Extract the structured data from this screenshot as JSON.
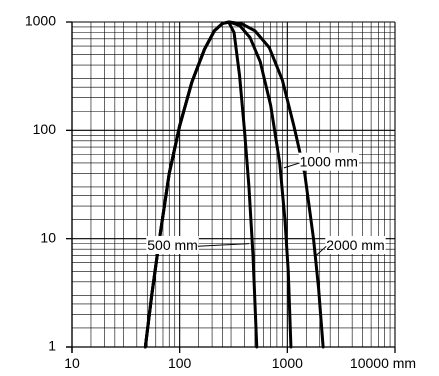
{
  "chart_data": {
    "type": "line",
    "title": "",
    "xlabel": "",
    "ylabel": "",
    "x_scale": "log",
    "y_scale": "log",
    "xlim": [
      10,
      10000
    ],
    "ylim": [
      1,
      1000
    ],
    "grid": true,
    "x_ticks": [
      {
        "value": 10,
        "label": "10"
      },
      {
        "value": 100,
        "label": "100"
      },
      {
        "value": 1000,
        "label": "1000"
      },
      {
        "value": 10000,
        "label": "10000 mm"
      }
    ],
    "y_ticks": [
      {
        "value": 1,
        "label": "1"
      },
      {
        "value": 10,
        "label": "10"
      },
      {
        "value": 100,
        "label": "100"
      },
      {
        "value": 1000,
        "label": "1000"
      }
    ],
    "series": [
      {
        "name": "500 mm",
        "label_anchor": {
          "x": 50,
          "y": 8.5
        },
        "label_target": {
          "x": 440,
          "y": 9
        },
        "points": [
          {
            "x": 48,
            "y": 1
          },
          {
            "x": 55,
            "y": 3
          },
          {
            "x": 65,
            "y": 10
          },
          {
            "x": 80,
            "y": 40
          },
          {
            "x": 100,
            "y": 110
          },
          {
            "x": 130,
            "y": 280
          },
          {
            "x": 170,
            "y": 560
          },
          {
            "x": 210,
            "y": 830
          },
          {
            "x": 250,
            "y": 970
          },
          {
            "x": 285,
            "y": 1000
          },
          {
            "x": 320,
            "y": 800
          },
          {
            "x": 360,
            "y": 320
          },
          {
            "x": 400,
            "y": 100
          },
          {
            "x": 440,
            "y": 30
          },
          {
            "x": 480,
            "y": 7
          },
          {
            "x": 520,
            "y": 1
          }
        ]
      },
      {
        "name": "1000 mm",
        "label_anchor": {
          "x": 1300,
          "y": 50
        },
        "label_target": {
          "x": 930,
          "y": 45
        },
        "points": [
          {
            "x": 48,
            "y": 1
          },
          {
            "x": 55,
            "y": 3
          },
          {
            "x": 65,
            "y": 10
          },
          {
            "x": 80,
            "y": 40
          },
          {
            "x": 100,
            "y": 110
          },
          {
            "x": 130,
            "y": 280
          },
          {
            "x": 170,
            "y": 560
          },
          {
            "x": 210,
            "y": 830
          },
          {
            "x": 250,
            "y": 970
          },
          {
            "x": 290,
            "y": 1000
          },
          {
            "x": 360,
            "y": 930
          },
          {
            "x": 450,
            "y": 720
          },
          {
            "x": 560,
            "y": 430
          },
          {
            "x": 700,
            "y": 170
          },
          {
            "x": 850,
            "y": 50
          },
          {
            "x": 950,
            "y": 15
          },
          {
            "x": 1020,
            "y": 5
          },
          {
            "x": 1080,
            "y": 1
          }
        ]
      },
      {
        "name": "2000 mm",
        "label_anchor": {
          "x": 2300,
          "y": 8.5
        },
        "label_target": {
          "x": 1850,
          "y": 7
        },
        "points": [
          {
            "x": 48,
            "y": 1
          },
          {
            "x": 55,
            "y": 3
          },
          {
            "x": 65,
            "y": 10
          },
          {
            "x": 80,
            "y": 40
          },
          {
            "x": 100,
            "y": 110
          },
          {
            "x": 130,
            "y": 280
          },
          {
            "x": 170,
            "y": 560
          },
          {
            "x": 210,
            "y": 830
          },
          {
            "x": 250,
            "y": 970
          },
          {
            "x": 290,
            "y": 1000
          },
          {
            "x": 380,
            "y": 960
          },
          {
            "x": 500,
            "y": 830
          },
          {
            "x": 680,
            "y": 580
          },
          {
            "x": 900,
            "y": 290
          },
          {
            "x": 1150,
            "y": 110
          },
          {
            "x": 1450,
            "y": 40
          },
          {
            "x": 1750,
            "y": 10
          },
          {
            "x": 1950,
            "y": 3.5
          },
          {
            "x": 2150,
            "y": 1
          }
        ]
      }
    ]
  }
}
